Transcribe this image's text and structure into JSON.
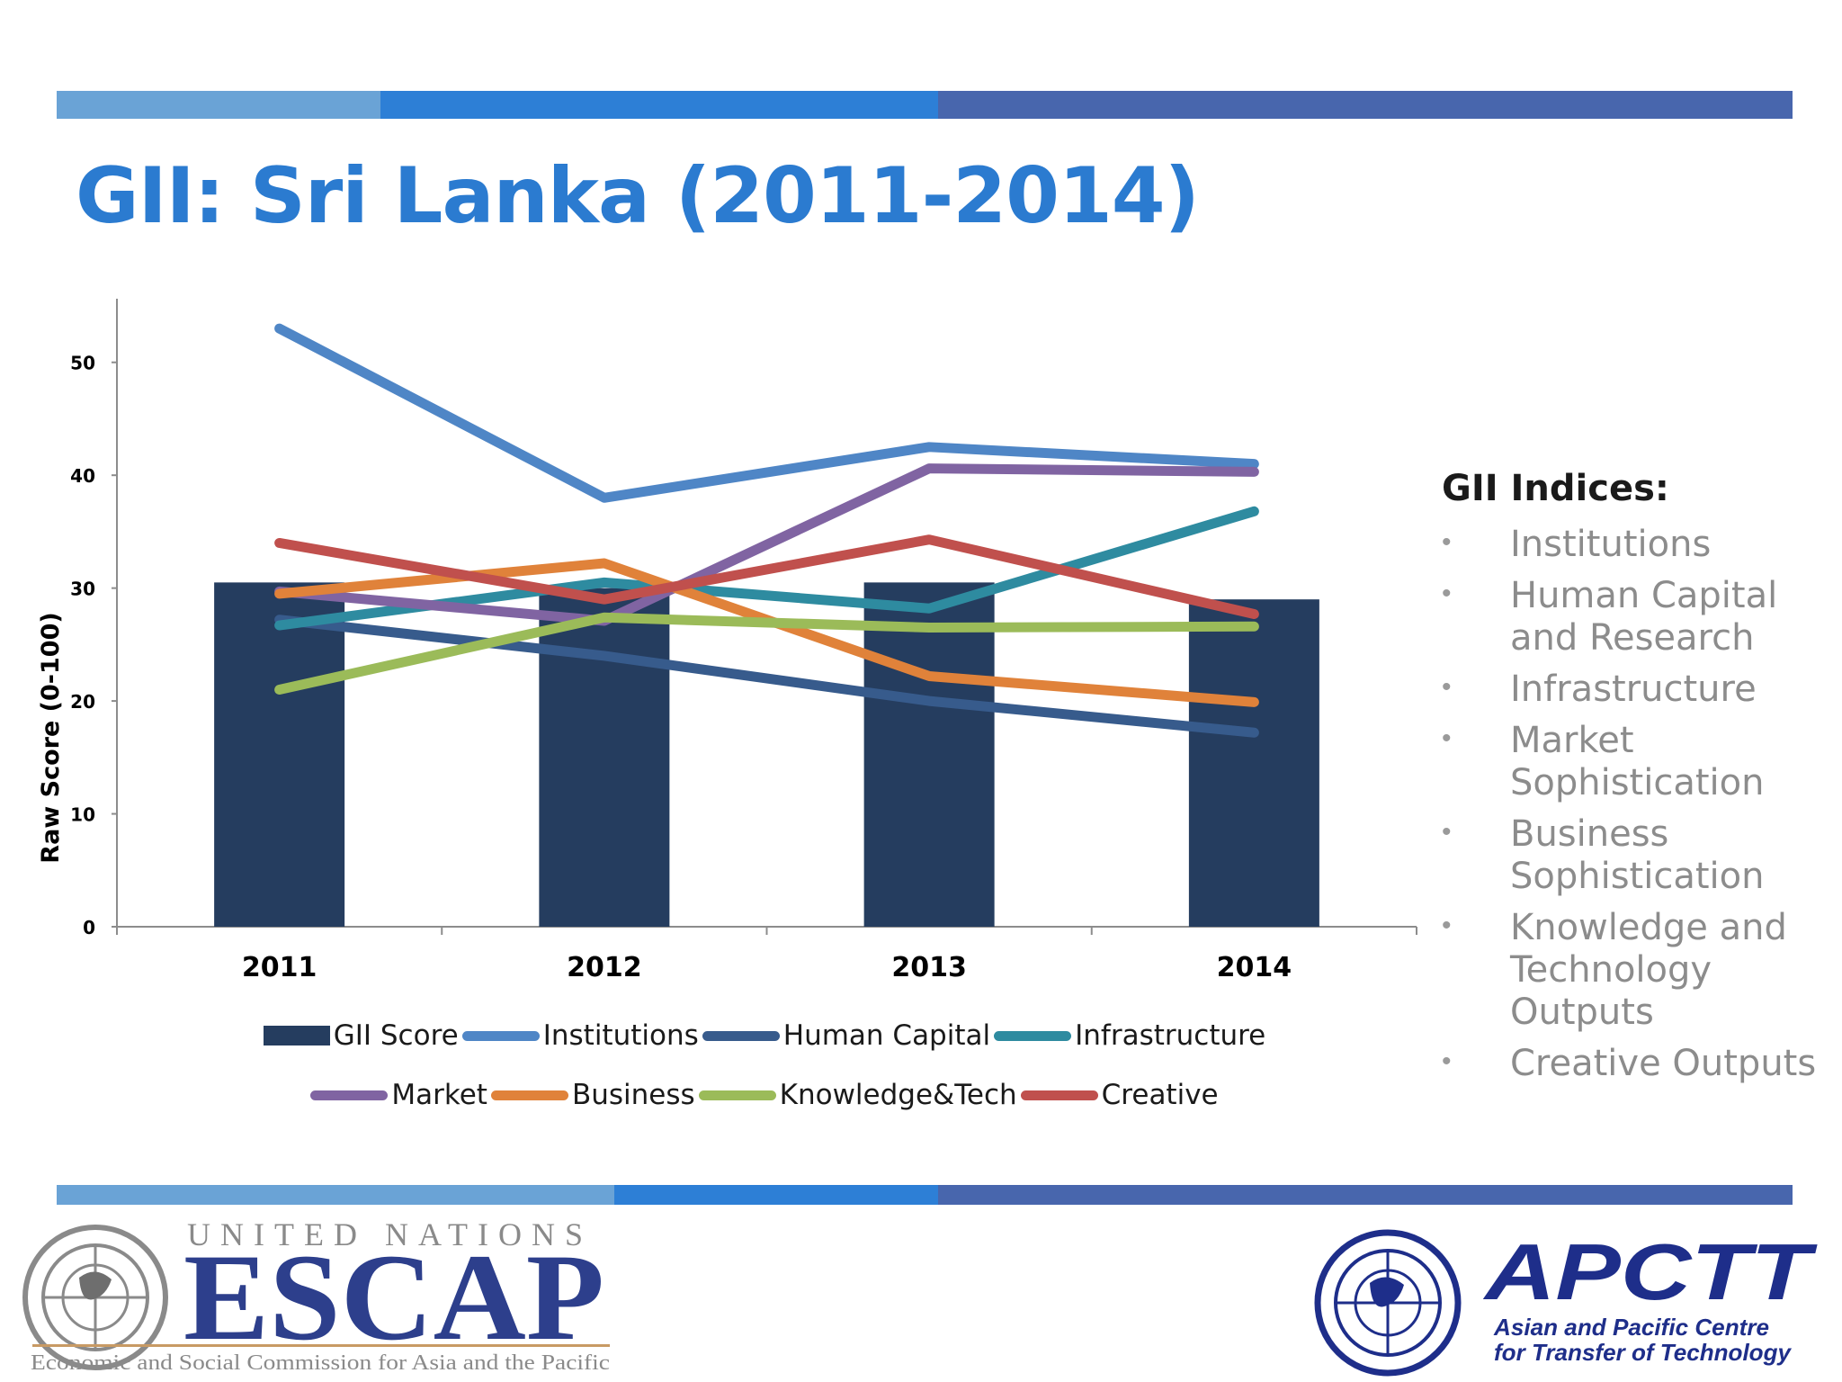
{
  "slide": {
    "title": "GII: Sri Lanka (2011-2014)",
    "band_colors": [
      "#6aa3d6",
      "#2d7fd6",
      "#4866ad"
    ]
  },
  "chart_data": {
    "type": "bar",
    "categories": [
      "2011",
      "2012",
      "2013",
      "2014"
    ],
    "ylabel": "Raw Score (0-100)",
    "xlabel": "",
    "ylim": [
      0,
      55
    ],
    "yticks": [
      0,
      10,
      20,
      30,
      40,
      50
    ],
    "grid": false,
    "legend_position": "bottom",
    "bar_series": {
      "name": "GII Score",
      "color": "#253d5f",
      "values": [
        30.5,
        30,
        30.5,
        29
      ]
    },
    "line_series": [
      {
        "name": "Institutions",
        "color": "#4f86c6",
        "values": [
          53,
          38,
          42.5,
          41
        ]
      },
      {
        "name": "Human Capital",
        "color": "#375b8c",
        "values": [
          27.2,
          24,
          20,
          17.2
        ]
      },
      {
        "name": "Infrastructure",
        "color": "#2e8ba0",
        "values": [
          26.7,
          30.5,
          28.2,
          36.8
        ]
      },
      {
        "name": "Market",
        "color": "#8064a2",
        "values": [
          29.7,
          27.1,
          40.6,
          40.3
        ]
      },
      {
        "name": "Business",
        "color": "#e0823a",
        "values": [
          29.5,
          32.2,
          22.2,
          19.9
        ]
      },
      {
        "name": "Knowledge&Tech",
        "color": "#9bbb59",
        "values": [
          21,
          27.4,
          26.5,
          26.6
        ]
      },
      {
        "name": "Creative",
        "color": "#c0504d",
        "values": [
          34,
          29,
          34.3,
          27.7
        ]
      }
    ]
  },
  "side_panel": {
    "heading": "GII Indices:",
    "bullet": "•",
    "items": [
      "Institutions",
      "Human Capital and Research",
      "Infrastructure",
      "Market Sophistication",
      "Business Sophistication",
      "Knowledge and Technology Outputs",
      "Creative Outputs"
    ]
  },
  "logos": {
    "escap": {
      "line1": "UNITED NATIONS",
      "line2": "ESCAP",
      "line3": "Economic and Social Commission for Asia and the Pacific"
    },
    "apctt": {
      "name": "APCTT",
      "line1": "Asian and Pacific Centre",
      "line2": "for Transfer of Technology"
    }
  }
}
